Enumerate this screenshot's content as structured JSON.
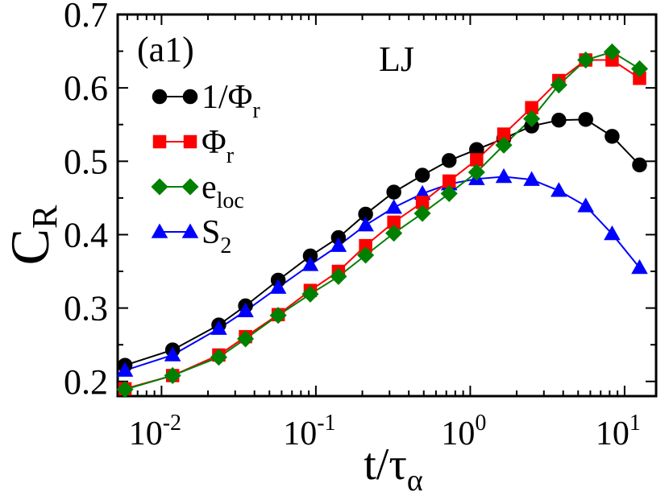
{
  "chart_data": {
    "type": "line",
    "panel_label": "(a1)",
    "annotation": "LJ",
    "xlabel": {
      "main": "t/τ",
      "sub": "α"
    },
    "ylabel": {
      "main": "C",
      "sub": "R"
    },
    "xscale": "log",
    "xlim": [
      0.0052,
      16
    ],
    "ylim": [
      0.18,
      0.7
    ],
    "yticks": [
      {
        "value": 0.2,
        "label": "0.2"
      },
      {
        "value": 0.3,
        "label": "0.3"
      },
      {
        "value": 0.4,
        "label": "0.4"
      },
      {
        "value": 0.5,
        "label": "0.5"
      },
      {
        "value": 0.6,
        "label": "0.6"
      },
      {
        "value": 0.7,
        "label": "0.7"
      }
    ],
    "xticks": [
      {
        "value": 0.01,
        "base": "10",
        "exp": "-2"
      },
      {
        "value": 0.1,
        "base": "10",
        "exp": "-1"
      },
      {
        "value": 1,
        "base": "10",
        "exp": "0"
      },
      {
        "value": 10,
        "base": "10",
        "exp": "1"
      }
    ],
    "x": [
      0.0058,
      0.0118,
      0.0235,
      0.035,
      0.057,
      0.092,
      0.14,
      0.21,
      0.32,
      0.49,
      0.73,
      1.1,
      1.65,
      2.5,
      3.75,
      5.6,
      8.3,
      12.5
    ],
    "series": [
      {
        "name": "1/Φ",
        "sub": "r",
        "color": "#000000",
        "marker": "circle",
        "values": [
          0.222,
          0.243,
          0.277,
          0.303,
          0.338,
          0.371,
          0.396,
          0.428,
          0.458,
          0.481,
          0.501,
          0.516,
          0.531,
          0.548,
          0.556,
          0.557,
          0.534,
          0.495
        ]
      },
      {
        "name": "Φ",
        "sub": "r",
        "color": "#ff0000",
        "marker": "square",
        "values": [
          0.19,
          0.208,
          0.236,
          0.261,
          0.291,
          0.324,
          0.35,
          0.385,
          0.417,
          0.444,
          0.473,
          0.502,
          0.537,
          0.573,
          0.61,
          0.638,
          0.638,
          0.613
        ]
      },
      {
        "name": "e",
        "sub": "loc",
        "color": "#008000",
        "marker": "diamond",
        "values": [
          0.189,
          0.208,
          0.233,
          0.258,
          0.29,
          0.319,
          0.343,
          0.372,
          0.402,
          0.429,
          0.456,
          0.485,
          0.522,
          0.558,
          0.604,
          0.638,
          0.649,
          0.626
        ]
      },
      {
        "name": "S",
        "sub": "2",
        "color": "#0000ff",
        "marker": "triangle",
        "values": [
          0.215,
          0.236,
          0.272,
          0.296,
          0.328,
          0.359,
          0.385,
          0.413,
          0.437,
          0.456,
          0.469,
          0.476,
          0.479,
          0.475,
          0.46,
          0.439,
          0.401,
          0.355
        ]
      }
    ],
    "legend_position": "upper-left"
  }
}
